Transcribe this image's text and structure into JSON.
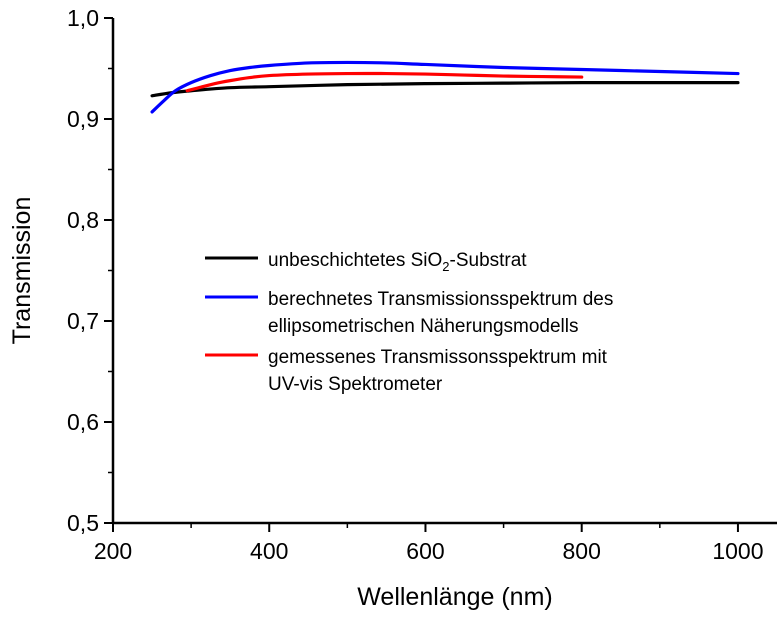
{
  "chart_data": {
    "type": "line",
    "title": "",
    "xlabel": "Wellenlänge (nm)",
    "ylabel": "Transmission",
    "xlim": [
      200,
      1050
    ],
    "ylim": [
      0.5,
      1.0
    ],
    "xticks": [
      200,
      400,
      600,
      800,
      1000
    ],
    "xtick_labels": [
      "200",
      "400",
      "600",
      "800",
      "1000"
    ],
    "yticks": [
      0.5,
      0.6,
      0.7,
      0.8,
      0.9,
      1.0
    ],
    "ytick_labels": [
      "0,5",
      "0,6",
      "0,7",
      "0,8",
      "0,9",
      "1,0"
    ],
    "grid": false,
    "legend_position": "center",
    "series": [
      {
        "name": "unbeschichtetes SiO2-Substrat",
        "color": "#000000",
        "x": [
          250,
          275,
          300,
          350,
          400,
          500,
          600,
          700,
          800,
          900,
          1000
        ],
        "y": [
          0.923,
          0.926,
          0.928,
          0.931,
          0.932,
          0.934,
          0.935,
          0.9355,
          0.936,
          0.936,
          0.936
        ]
      },
      {
        "name": "berechnetes Transmissionsspektrum des ellipsometrischen Näherungsmodells",
        "color": "#0000ff",
        "x": [
          250,
          265,
          280,
          300,
          325,
          350,
          375,
          400,
          450,
          500,
          550,
          600,
          700,
          800,
          900,
          1000
        ],
        "y": [
          0.907,
          0.918,
          0.928,
          0.936,
          0.943,
          0.948,
          0.951,
          0.953,
          0.9555,
          0.956,
          0.9555,
          0.954,
          0.951,
          0.949,
          0.947,
          0.945
        ]
      },
      {
        "name": "gemessenes Transmissonsspektrum mit UV-vis Spektrometer",
        "color": "#ff0000",
        "x": [
          295,
          310,
          330,
          350,
          375,
          400,
          450,
          500,
          550,
          600,
          650,
          700,
          750,
          800
        ],
        "y": [
          0.928,
          0.931,
          0.935,
          0.938,
          0.941,
          0.943,
          0.9445,
          0.945,
          0.945,
          0.9445,
          0.9435,
          0.9425,
          0.942,
          0.9415
        ]
      }
    ],
    "legend": {
      "entries": [
        {
          "lines": [
            "unbeschichtetes SiO",
            "2",
            "-Substrat"
          ],
          "color": "#000000"
        },
        {
          "lines": [
            "berechnetes Transmissionsspektrum des",
            "ellipsometrischen Näherungsmodells"
          ],
          "color": "#0000ff"
        },
        {
          "lines": [
            "gemessenes Transmissonsspektrum mit",
            "UV-vis Spektrometer"
          ],
          "color": "#ff0000"
        }
      ]
    }
  }
}
